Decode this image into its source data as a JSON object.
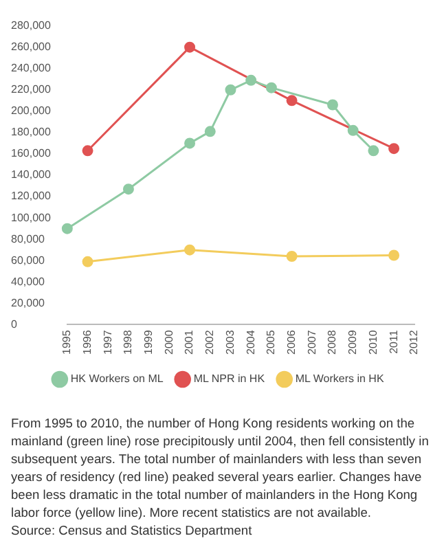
{
  "chart_data": {
    "type": "line",
    "categories": [
      "1995",
      "1996",
      "1997",
      "1998",
      "1999",
      "2000",
      "2001",
      "2002",
      "2003",
      "2004",
      "2005",
      "2006",
      "2007",
      "2008",
      "2009",
      "2010",
      "2011",
      "2012"
    ],
    "series": [
      {
        "name": "HK Workers on ML",
        "color": "#8ecaa3",
        "values": [
          90000,
          null,
          null,
          127000,
          null,
          null,
          170000,
          181000,
          220000,
          229000,
          222000,
          null,
          null,
          206000,
          182000,
          163000,
          null,
          null
        ]
      },
      {
        "name": "ML NPR in HK",
        "color": "#e05252",
        "values": [
          null,
          163000,
          null,
          null,
          null,
          null,
          260000,
          null,
          null,
          null,
          null,
          210000,
          null,
          null,
          null,
          null,
          165000,
          null
        ]
      },
      {
        "name": "ML Workers in HK",
        "color": "#f3cc5c",
        "values": [
          null,
          59000,
          null,
          null,
          null,
          null,
          70000,
          null,
          null,
          null,
          null,
          64000,
          null,
          null,
          null,
          null,
          65000,
          null
        ]
      }
    ],
    "ylim": [
      0,
      280000
    ],
    "yticks": [
      0,
      {
        "value": 20000,
        "label": "20,000"
      },
      {
        "value": 40000,
        "label": "40,000"
      },
      {
        "value": 60000,
        "label": "60,000"
      },
      {
        "value": 80000,
        "label": "80,000"
      },
      {
        "value": 100000,
        "label": "100,000"
      },
      {
        "value": 120000,
        "label": "120,000"
      },
      {
        "value": 140000,
        "label": "140,000"
      },
      {
        "value": 160000,
        "label": "160,000"
      },
      {
        "value": 180000,
        "label": "180,000"
      },
      {
        "value": 200000,
        "label": "200,000"
      },
      {
        "value": 220000,
        "label": "220,000"
      },
      {
        "value": 240000,
        "label": "240,000"
      },
      {
        "value": 260000,
        "label": "260,000"
      },
      {
        "value": 280000,
        "label": "280,000"
      }
    ],
    "grid": false,
    "legend": "bottom",
    "marker": "circle",
    "line_style": "solid",
    "annotations": [
      "From 1995 to 2010, the number of Hong Kong residents working on the mainland (green line) rose precipitously until 2004, then fell consistently in subsequent years. The total number of mainlanders with less than seven years of residency (red line) peaked several years earlier. Changes have been less dramatic in the total number of mainlanders in the Hong Kong labor force (yellow line). More recent statistics are not available.",
      "Source: Census and Statistics Department"
    ]
  }
}
